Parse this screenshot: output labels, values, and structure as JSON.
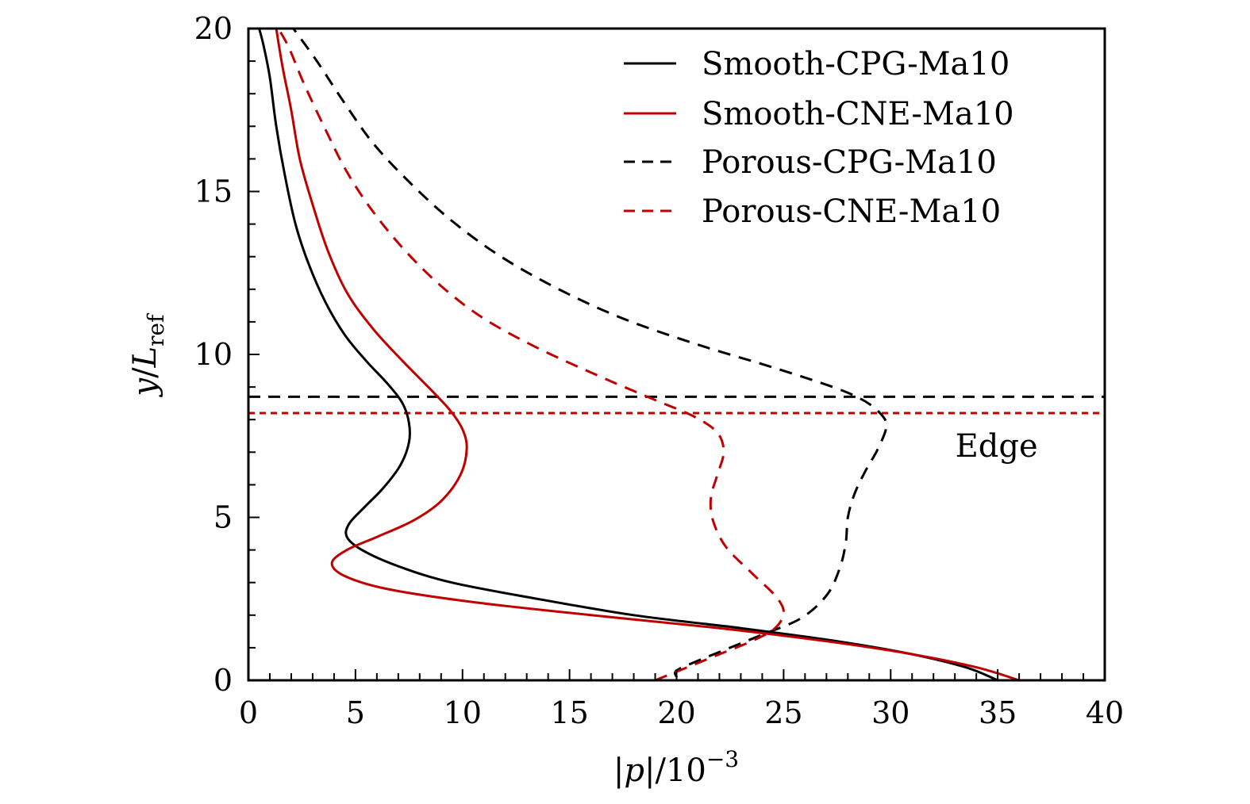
{
  "chart_data": {
    "type": "line",
    "title": "",
    "xlabel": "|p|/10^-3",
    "xlabel_parts": {
      "bar_left": "|",
      "var": "p",
      "bar_right": "|",
      "slash": "/",
      "base": "10",
      "exp": "−3"
    },
    "ylabel": "y/L_ref",
    "ylabel_parts": {
      "var": "y",
      "slash": "/",
      "L": "L",
      "sub": "ref"
    },
    "xlim": [
      0,
      40
    ],
    "ylim": [
      0,
      20
    ],
    "x_ticks": [
      0,
      5,
      10,
      15,
      20,
      25,
      30,
      35,
      40
    ],
    "x_tick_labels": [
      "0",
      "5",
      "10",
      "15",
      "20",
      "25",
      "30",
      "35",
      "40"
    ],
    "x_minor_step": 1,
    "y_ticks": [
      0,
      5,
      10,
      15,
      20
    ],
    "y_tick_labels": [
      "0",
      "5",
      "10",
      "15",
      "20"
    ],
    "y_minor_step": 1,
    "grid": false,
    "legend_position": "top-right",
    "series": [
      {
        "name": "Smooth-CPG-Ma10",
        "color": "#000000",
        "dash": "solid",
        "points": [
          [
            35.0,
            0.0
          ],
          [
            33.5,
            0.4
          ],
          [
            31.0,
            0.8
          ],
          [
            27.5,
            1.2
          ],
          [
            23.0,
            1.6
          ],
          [
            18.0,
            2.0
          ],
          [
            13.5,
            2.5
          ],
          [
            9.5,
            3.0
          ],
          [
            7.0,
            3.5
          ],
          [
            5.3,
            4.0
          ],
          [
            4.6,
            4.4
          ],
          [
            4.7,
            4.8
          ],
          [
            5.4,
            5.3
          ],
          [
            6.3,
            5.9
          ],
          [
            7.1,
            6.6
          ],
          [
            7.5,
            7.3
          ],
          [
            7.5,
            7.9
          ],
          [
            7.2,
            8.5
          ],
          [
            6.5,
            9.1
          ],
          [
            5.5,
            9.8
          ],
          [
            4.5,
            10.6
          ],
          [
            3.6,
            11.6
          ],
          [
            2.8,
            12.8
          ],
          [
            2.2,
            14.0
          ],
          [
            1.7,
            15.5
          ],
          [
            1.3,
            17.0
          ],
          [
            1.0,
            18.5
          ],
          [
            0.7,
            19.5
          ],
          [
            0.5,
            20.0
          ]
        ]
      },
      {
        "name": "Smooth-CNE-Ma10",
        "color": "#c00000",
        "dash": "solid",
        "points": [
          [
            36.0,
            0.0
          ],
          [
            34.0,
            0.4
          ],
          [
            31.0,
            0.8
          ],
          [
            27.0,
            1.2
          ],
          [
            22.0,
            1.6
          ],
          [
            16.0,
            2.0
          ],
          [
            10.5,
            2.4
          ],
          [
            6.5,
            2.8
          ],
          [
            4.5,
            3.2
          ],
          [
            3.9,
            3.6
          ],
          [
            4.6,
            4.0
          ],
          [
            6.0,
            4.4
          ],
          [
            7.7,
            4.9
          ],
          [
            9.0,
            5.5
          ],
          [
            9.9,
            6.3
          ],
          [
            10.2,
            7.1
          ],
          [
            10.0,
            7.7
          ],
          [
            9.4,
            8.3
          ],
          [
            8.4,
            9.0
          ],
          [
            7.2,
            9.8
          ],
          [
            5.8,
            10.8
          ],
          [
            4.6,
            11.9
          ],
          [
            3.7,
            13.2
          ],
          [
            3.0,
            14.6
          ],
          [
            2.4,
            16.0
          ],
          [
            2.0,
            17.5
          ],
          [
            1.6,
            18.8
          ],
          [
            1.3,
            20.0
          ]
        ]
      },
      {
        "name": "Porous-CPG-Ma10",
        "color": "#000000",
        "dash": "dashed",
        "points": [
          [
            20.0,
            0.1
          ],
          [
            20.0,
            0.3
          ],
          [
            21.0,
            0.6
          ],
          [
            22.5,
            1.0
          ],
          [
            24.0,
            1.4
          ],
          [
            25.8,
            1.9
          ],
          [
            27.0,
            2.6
          ],
          [
            27.6,
            3.4
          ],
          [
            27.9,
            4.2
          ],
          [
            28.0,
            5.0
          ],
          [
            28.3,
            5.7
          ],
          [
            28.8,
            6.4
          ],
          [
            29.4,
            7.1
          ],
          [
            29.8,
            7.8
          ],
          [
            29.5,
            8.2
          ],
          [
            28.7,
            8.6
          ],
          [
            27.3,
            9.0
          ],
          [
            24.5,
            9.6
          ],
          [
            21.0,
            10.3
          ],
          [
            17.5,
            11.1
          ],
          [
            14.5,
            12.0
          ],
          [
            11.8,
            13.0
          ],
          [
            9.5,
            14.1
          ],
          [
            7.5,
            15.3
          ],
          [
            5.8,
            16.5
          ],
          [
            4.4,
            17.8
          ],
          [
            3.2,
            19.0
          ],
          [
            2.1,
            20.0
          ]
        ]
      },
      {
        "name": "Porous-CNE-Ma10",
        "color": "#c00000",
        "dash": "dashed",
        "points": [
          [
            19.0,
            0.0
          ],
          [
            20.5,
            0.4
          ],
          [
            22.0,
            0.8
          ],
          [
            23.5,
            1.2
          ],
          [
            24.6,
            1.6
          ],
          [
            25.0,
            2.1
          ],
          [
            24.6,
            2.6
          ],
          [
            23.5,
            3.3
          ],
          [
            22.3,
            4.1
          ],
          [
            21.7,
            4.9
          ],
          [
            21.6,
            5.6
          ],
          [
            21.9,
            6.3
          ],
          [
            22.2,
            7.0
          ],
          [
            21.9,
            7.6
          ],
          [
            20.8,
            8.1
          ],
          [
            19.0,
            8.6
          ],
          [
            16.5,
            9.3
          ],
          [
            13.5,
            10.2
          ],
          [
            11.0,
            11.1
          ],
          [
            9.0,
            12.1
          ],
          [
            7.3,
            13.2
          ],
          [
            5.8,
            14.4
          ],
          [
            4.6,
            15.6
          ],
          [
            3.6,
            16.9
          ],
          [
            2.6,
            18.3
          ],
          [
            1.9,
            19.4
          ],
          [
            1.4,
            20.0
          ]
        ]
      }
    ],
    "reference_lines": [
      {
        "name": "edge-cpg",
        "orientation": "horizontal",
        "y": 8.7,
        "color": "#000000",
        "dash": "dashed"
      },
      {
        "name": "edge-cne",
        "orientation": "horizontal",
        "y": 8.2,
        "color": "#c00000",
        "dash": "dotted"
      }
    ],
    "annotations": [
      {
        "text": "Edge",
        "x": 36.8,
        "y": 7.2
      }
    ]
  }
}
